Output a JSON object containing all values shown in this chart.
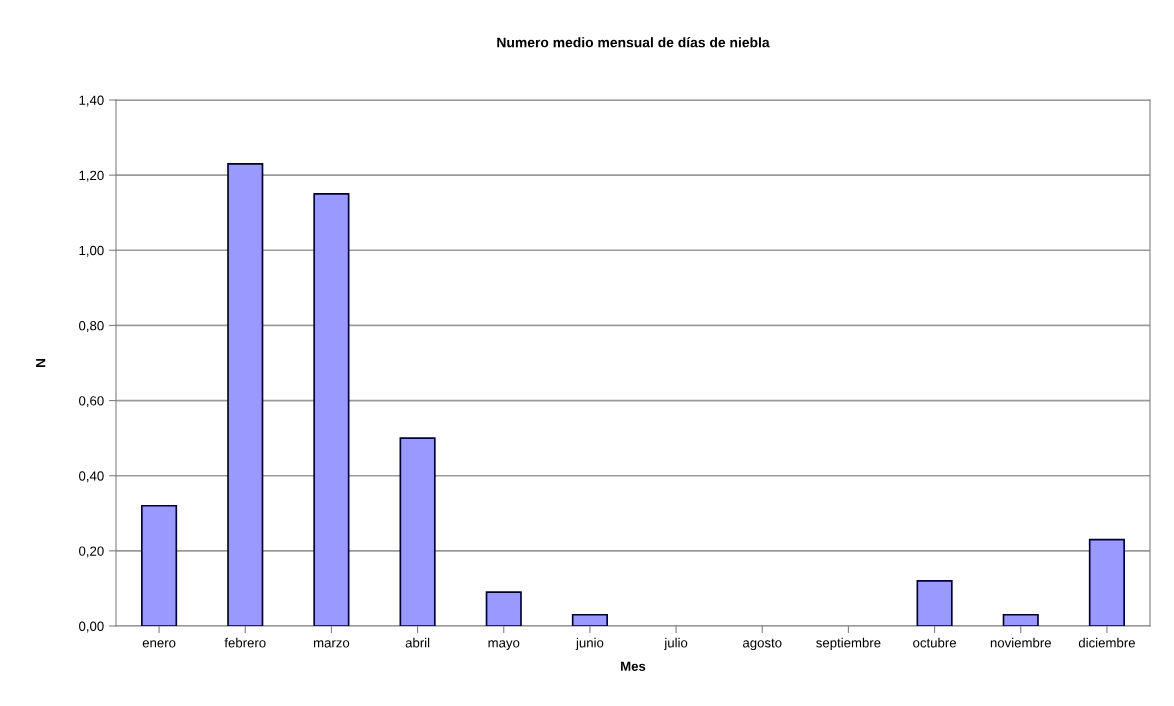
{
  "chart_data": {
    "type": "bar",
    "title": "Numero medio mensual de días de niebla",
    "xlabel": "Mes",
    "ylabel": "N",
    "categories": [
      "enero",
      "febrero",
      "marzo",
      "abril",
      "mayo",
      "junio",
      "julio",
      "agosto",
      "septiembre",
      "octubre",
      "noviembre",
      "diciembre"
    ],
    "values": [
      0.32,
      1.23,
      1.15,
      0.5,
      0.09,
      0.03,
      0,
      0,
      0,
      0.12,
      0.03,
      0.23
    ],
    "color": "#9999ff",
    "ylim": [
      0,
      1.4
    ],
    "yticks": [
      {
        "value": 0,
        "label": "0,00"
      },
      {
        "value": 0.2,
        "label": "0,20"
      },
      {
        "value": 0.4,
        "label": "0,40"
      },
      {
        "value": 0.6,
        "label": "0,60"
      },
      {
        "value": 0.8,
        "label": "0,80"
      },
      {
        "value": 1.0,
        "label": "1,00"
      },
      {
        "value": 1.2,
        "label": "1,20"
      },
      {
        "value": 1.4,
        "label": "1,40"
      }
    ],
    "grid": "y",
    "legend": false
  }
}
